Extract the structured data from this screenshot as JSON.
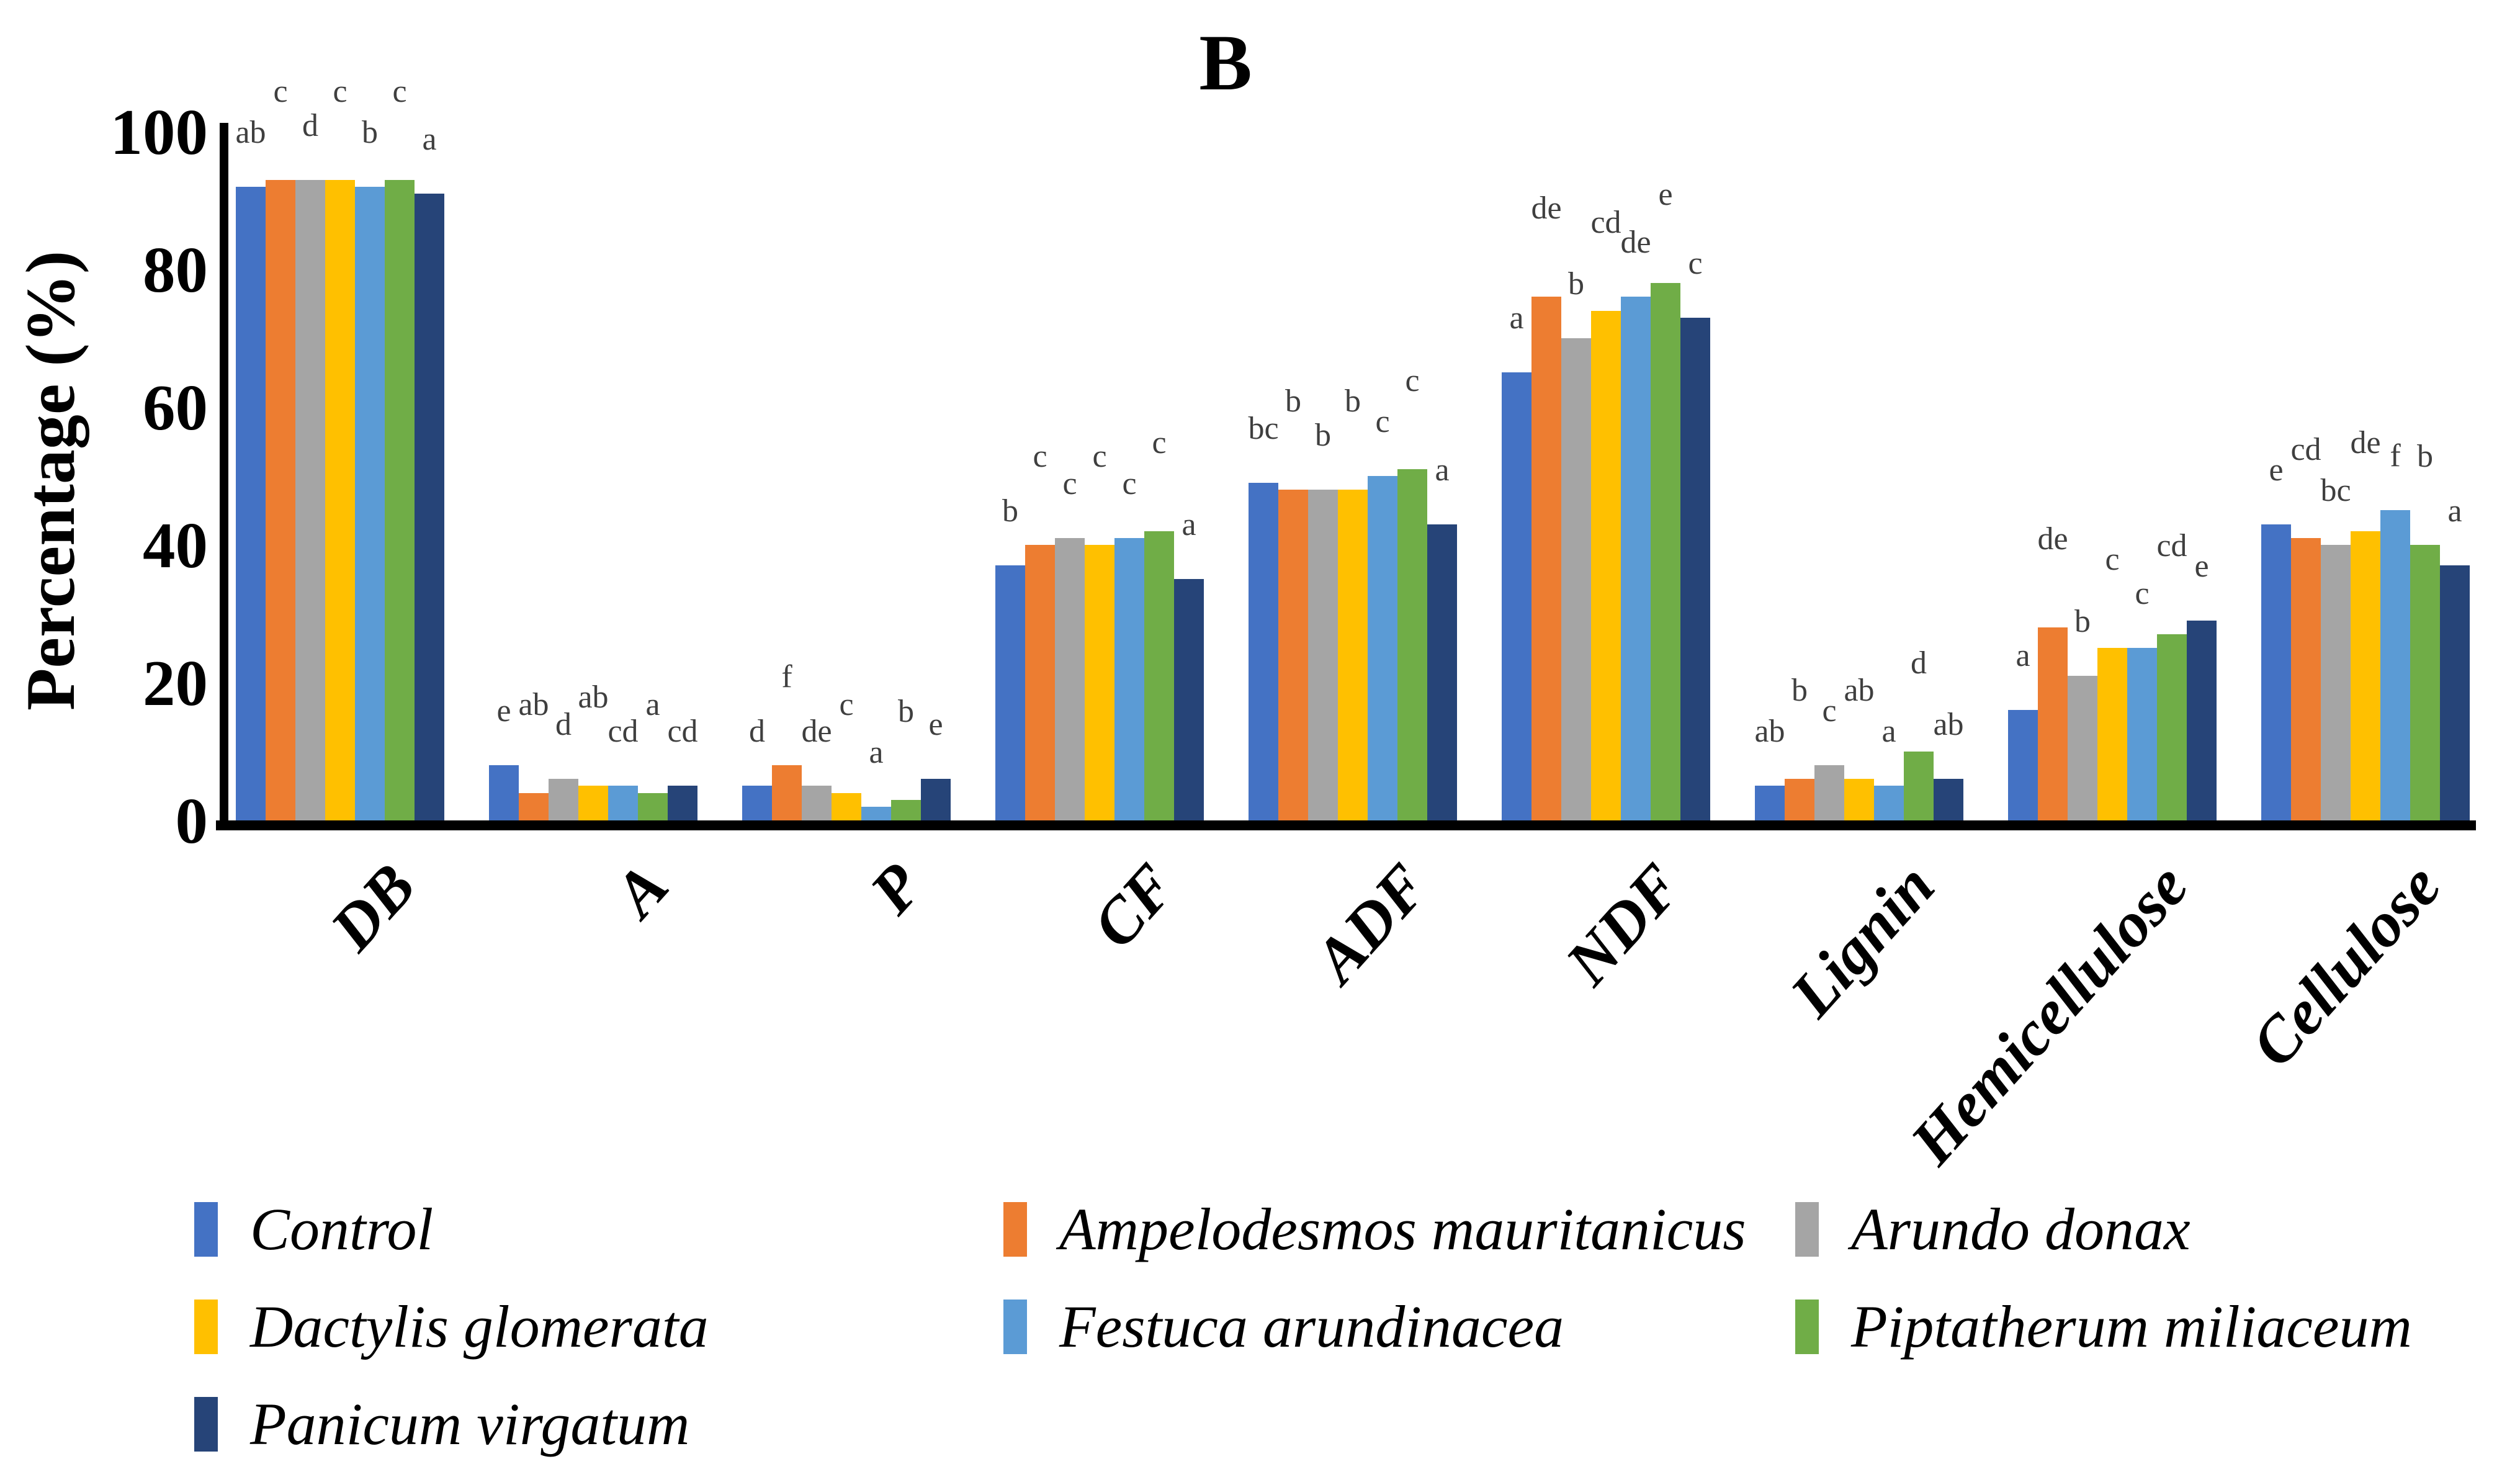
{
  "title": "B",
  "y_axis": {
    "label": "Percentage (%)",
    "ticks": [
      100,
      80,
      60,
      40,
      20,
      0
    ]
  },
  "chart_data": {
    "type": "bar",
    "title": "B",
    "xlabel": "",
    "ylabel": "Percentage (%)",
    "ylim": [
      0,
      100
    ],
    "ytick_step": 20,
    "grid": false,
    "legend_position": "bottom-left, 3 columns, italic species names",
    "categories": [
      "DB",
      "A",
      "P",
      "CF",
      "ADF",
      "NDF",
      "Lignin",
      "Hemicellulose",
      "Cellulose"
    ],
    "series": [
      {
        "name": "Control",
        "color": "#4472C4",
        "values": [
          92,
          8,
          5,
          37,
          49,
          65,
          5,
          16,
          43
        ],
        "sig_letters": [
          "ab",
          "e",
          "d",
          "b",
          "bc",
          "a",
          "ab",
          "a",
          "e"
        ]
      },
      {
        "name": "Ampelodesmos mauritanicus",
        "color": "#ED7D31",
        "values": [
          93,
          4,
          8,
          40,
          48,
          76,
          6,
          28,
          41
        ],
        "sig_letters": [
          "c",
          "ab",
          "f",
          "c",
          "b",
          "de",
          "b",
          "de",
          "cd"
        ]
      },
      {
        "name": "Arundo donax",
        "color": "#A5A5A5",
        "values": [
          93,
          6,
          5,
          41,
          48,
          70,
          8,
          21,
          40
        ],
        "sig_letters": [
          "d",
          "d",
          "de",
          "c",
          "b",
          "b",
          "c",
          "b",
          "bc"
        ]
      },
      {
        "name": "Dactylis glomerata",
        "color": "#FFC000",
        "values": [
          93,
          5,
          4,
          40,
          48,
          74,
          6,
          25,
          42
        ],
        "sig_letters": [
          "c",
          "ab",
          "c",
          "c",
          "b",
          "cd",
          "ab",
          "c",
          "de"
        ]
      },
      {
        "name": "Festuca arundinacea",
        "color": "#5B9BD5",
        "values": [
          92,
          5,
          2,
          41,
          50,
          76,
          5,
          25,
          45
        ],
        "sig_letters": [
          "b",
          "cd",
          "a",
          "c",
          "c",
          "de",
          "a",
          "c",
          "f"
        ]
      },
      {
        "name": "Piptatherum miliaceum",
        "color": "#70AD47",
        "values": [
          93,
          4,
          3,
          42,
          51,
          78,
          10,
          27,
          40
        ],
        "sig_letters": [
          "c",
          "a",
          "b",
          "c",
          "c",
          "e",
          "d",
          "cd",
          "b"
        ]
      },
      {
        "name": "Panicum virgatum",
        "color": "#264478",
        "values": [
          91,
          5,
          6,
          35,
          43,
          73,
          6,
          29,
          37
        ],
        "sig_letters": [
          "a",
          "cd",
          "e",
          "a",
          "a",
          "c",
          "ab",
          "e",
          "a"
        ]
      }
    ]
  }
}
